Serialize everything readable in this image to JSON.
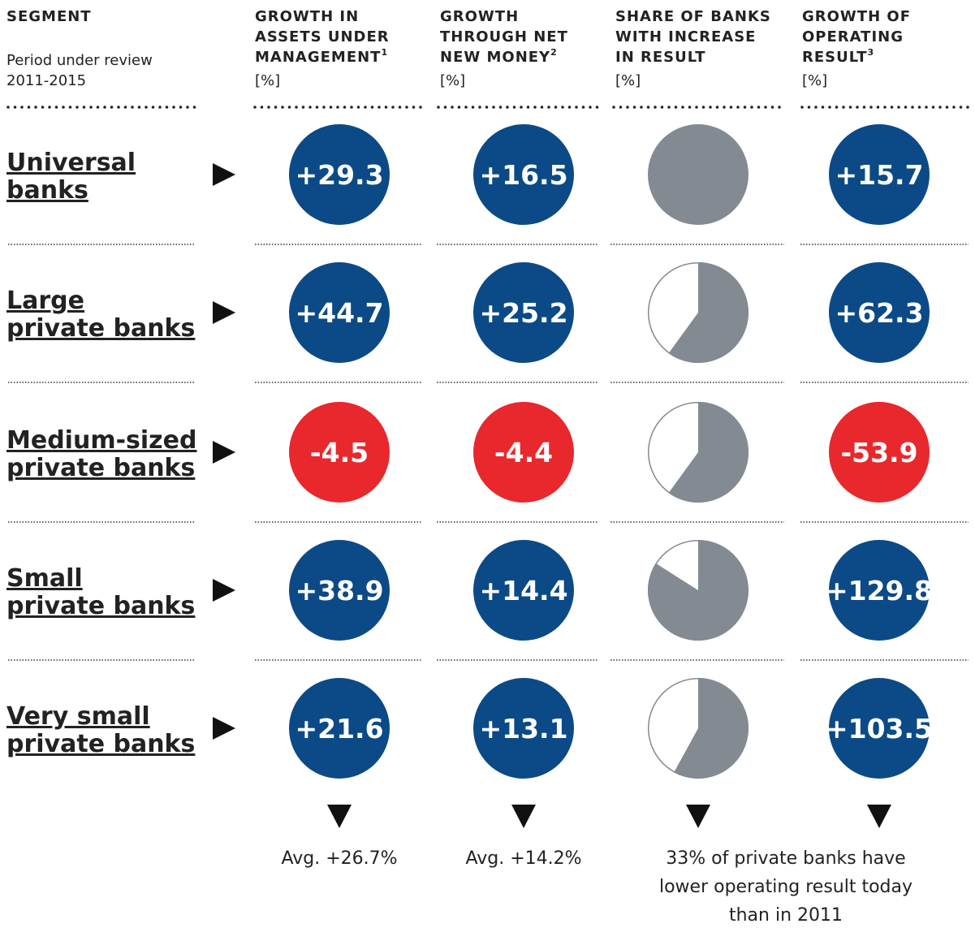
{
  "header": {
    "segment": "SEGMENT",
    "period_label": "Period under review",
    "period": "2011-2015",
    "columns": [
      {
        "lines": [
          "GROWTH IN",
          "ASSETS UNDER",
          "MANAGEMENT"
        ],
        "sup": "1",
        "unit": "[%]"
      },
      {
        "lines": [
          "GROWTH",
          "THROUGH NET",
          "NEW MONEY"
        ],
        "sup": "2",
        "unit": "[%]"
      },
      {
        "lines": [
          "SHARE OF BANKS",
          "WITH INCREASE",
          "IN RESULT"
        ],
        "unit": "[%]"
      },
      {
        "lines": [
          "GROWTH OF",
          "OPERATING",
          "RESULT"
        ],
        "sup": "3",
        "unit": "[%]"
      }
    ]
  },
  "rows": [
    {
      "label": [
        "Universal",
        "banks"
      ],
      "aum": {
        "value": 29.3,
        "label": "+29.3"
      },
      "nnm": {
        "value": 16.5,
        "label": "+16.5"
      },
      "share": 100,
      "result": {
        "value": 15.7,
        "label": "+15.7"
      }
    },
    {
      "label": [
        "Large",
        "private banks"
      ],
      "aum": {
        "value": 44.7,
        "label": "+44.7"
      },
      "nnm": {
        "value": 25.2,
        "label": "+25.2"
      },
      "share": 60,
      "result": {
        "value": 62.3,
        "label": "+62.3"
      }
    },
    {
      "label": [
        "Medium-sized",
        "private banks"
      ],
      "aum": -4.5,
      "nnm": -4.4,
      "share": 60,
      "result": -53.9
    },
    {
      "label": [
        "Small",
        "private banks"
      ],
      "aum": {
        "value": 38.9,
        "label": "+38.9"
      },
      "nnm": {
        "value": 14.4,
        "label": "+14.4"
      },
      "share": 84,
      "result": {
        "value": 129.8,
        "label": "+129.8"
      }
    },
    {
      "label": [
        "Very small",
        "private banks"
      ],
      "aum": {
        "value": 21.6,
        "label": "+21.6"
      },
      "nnm": {
        "value": 13.1,
        "label": "+13.1"
      },
      "share": 58,
      "result": {
        "value": 103.5,
        "label": "+103.5"
      }
    }
  ],
  "footer": {
    "aum": "Avg. +26.7%",
    "nnm": "Avg. +14.2%",
    "share": [
      "33% of private banks have",
      "lower operating result today",
      "than in 2011"
    ]
  }
}
